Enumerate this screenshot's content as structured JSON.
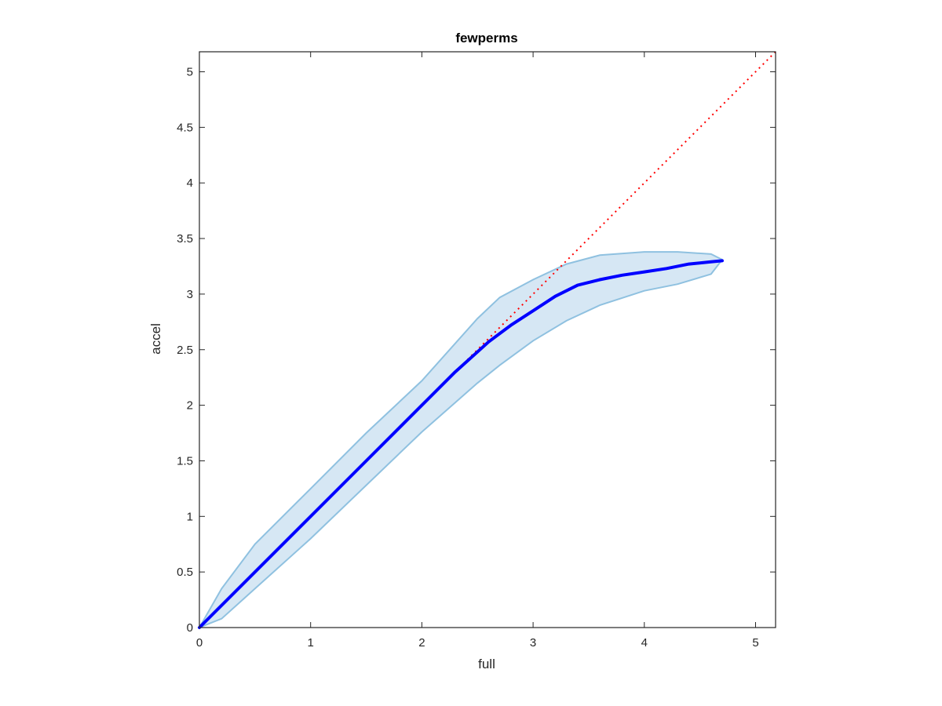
{
  "chart_data": {
    "type": "line",
    "title": "fewperms",
    "xlabel": "full",
    "ylabel": "accel",
    "xlim": [
      0,
      5.18
    ],
    "ylim": [
      0,
      5.18
    ],
    "grid": false,
    "xticks": [
      "0",
      "1",
      "2",
      "3",
      "4",
      "5"
    ],
    "yticks": [
      "0",
      "0.5",
      "1",
      "1.5",
      "2",
      "2.5",
      "3",
      "3.5",
      "4",
      "4.5",
      "5"
    ],
    "colors": {
      "mean_line": "#0000ff",
      "band_fill": "#d6e7f4",
      "band_edge": "#8fc1e0",
      "reference_line": "#ff0000",
      "axes": "#262626"
    },
    "series": [
      {
        "role": "band",
        "x": [
          0,
          0.2,
          0.5,
          1.0,
          1.5,
          2.0,
          2.5,
          2.7,
          3.0,
          3.3,
          3.6,
          4.0,
          4.3,
          4.6,
          4.7
        ],
        "upper": [
          0,
          0.35,
          0.75,
          1.25,
          1.75,
          2.22,
          2.78,
          2.97,
          3.13,
          3.27,
          3.35,
          3.38,
          3.38,
          3.36,
          3.31
        ],
        "lower": [
          0,
          0.08,
          0.35,
          0.8,
          1.28,
          1.76,
          2.2,
          2.36,
          2.58,
          2.76,
          2.9,
          3.03,
          3.09,
          3.18,
          3.31
        ]
      },
      {
        "role": "mean",
        "x": [
          0,
          0.5,
          1.0,
          1.5,
          2.0,
          2.3,
          2.6,
          2.8,
          3.0,
          3.2,
          3.4,
          3.6,
          3.8,
          4.0,
          4.2,
          4.4,
          4.6,
          4.7
        ],
        "y": [
          0,
          0.5,
          1.0,
          1.5,
          2.0,
          2.3,
          2.57,
          2.72,
          2.85,
          2.98,
          3.08,
          3.13,
          3.17,
          3.2,
          3.23,
          3.27,
          3.29,
          3.3
        ]
      },
      {
        "role": "reference",
        "x": [
          0,
          5.18
        ],
        "y": [
          0,
          5.18
        ]
      }
    ]
  }
}
